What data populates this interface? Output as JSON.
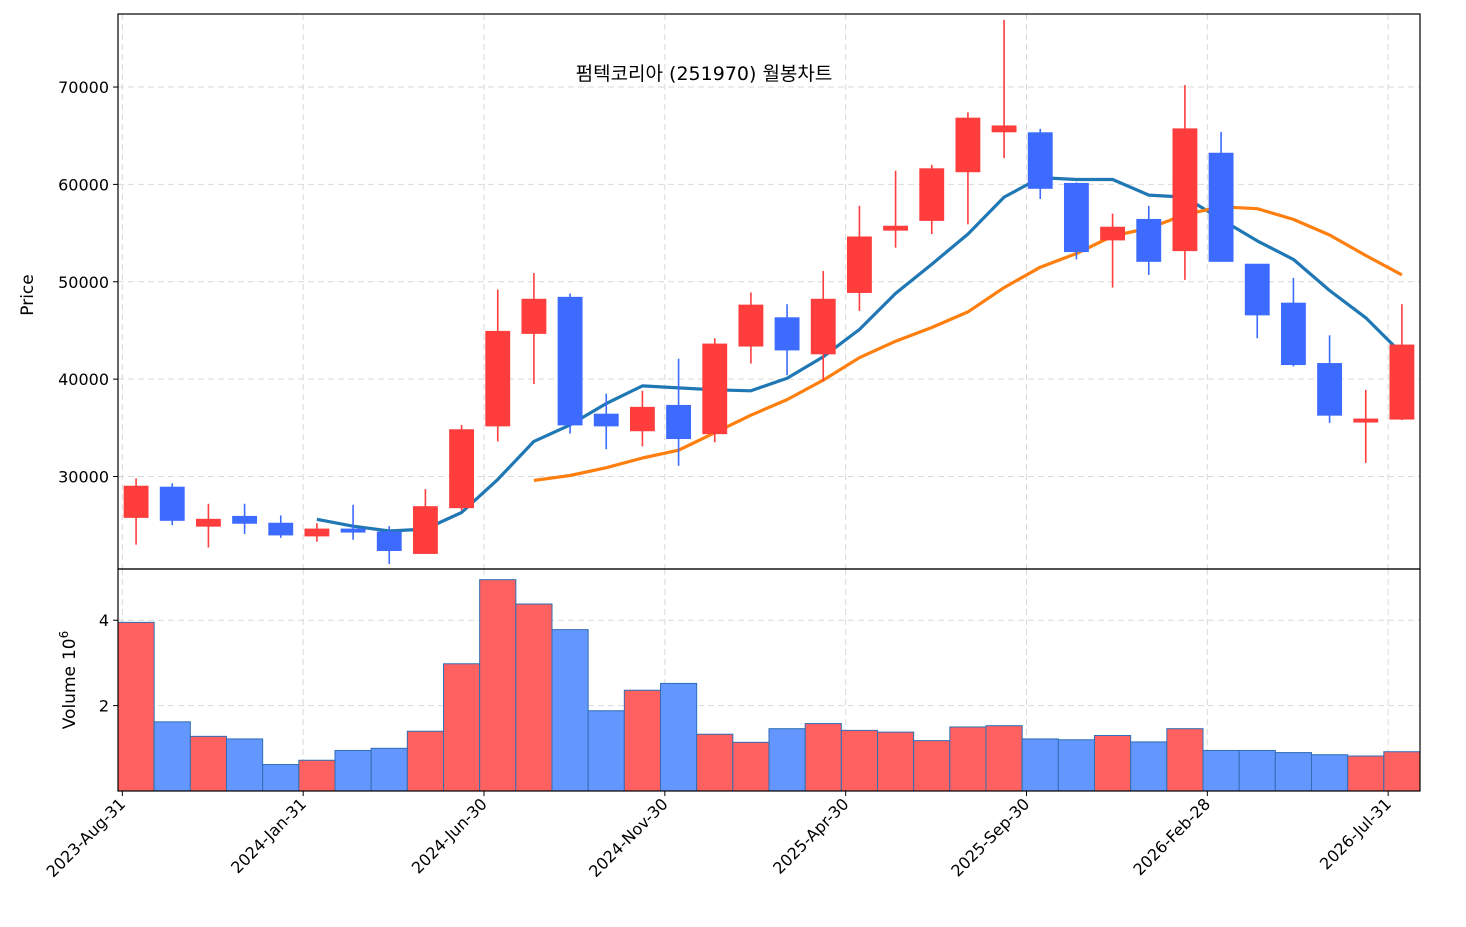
{
  "chart_data": {
    "type": "candlestick",
    "title": "펌텍코리아 (251970) 월봉차트",
    "price_ylabel": "Price",
    "volume_ylabel": "Volume",
    "volume_multiplier_label": "10",
    "volume_multiplier_exp": "6",
    "price_ylim": [
      20500,
      77500
    ],
    "volume_ylim": [
      0,
      5.2
    ],
    "price_yticks": [
      {
        "value": 30000,
        "label": "30000"
      },
      {
        "value": 40000,
        "label": "40000"
      },
      {
        "value": 50000,
        "label": "50000"
      },
      {
        "value": 60000,
        "label": "60000"
      },
      {
        "value": 70000,
        "label": "70000"
      }
    ],
    "volume_yticks": [
      {
        "value": 2,
        "label": "2"
      },
      {
        "value": 4,
        "label": "4"
      }
    ],
    "xticks": [
      {
        "index": 0,
        "label": "2023-Aug-31"
      },
      {
        "index": 5,
        "label": "2024-Jan-31"
      },
      {
        "index": 10,
        "label": "2024-Jun-30"
      },
      {
        "index": 15,
        "label": "2024-Nov-30"
      },
      {
        "index": 20,
        "label": "2025-Apr-30"
      },
      {
        "index": 25,
        "label": "2025-Sep-30"
      },
      {
        "index": 30,
        "label": "2026-Feb-28"
      },
      {
        "index": 35,
        "label": "2026-Jul-31"
      }
    ],
    "grid": true,
    "up_color": "#ff3d3d",
    "down_color": "#3d6bff",
    "volume_up_color": "#ff6060",
    "volume_down_color": "#6496ff",
    "ma_series": [
      {
        "color": "#1f77b4",
        "values": [
          null,
          null,
          null,
          null,
          null,
          25600,
          24900,
          24400,
          24600,
          26300,
          29700,
          33600,
          35300,
          37500,
          39300,
          39100,
          38900,
          38800,
          40100,
          42300,
          45100,
          48800,
          51800,
          54900,
          58700,
          60700,
          60500,
          60500,
          58900,
          58700,
          56400,
          54200,
          52300,
          49100,
          46300,
          42600
        ]
      },
      {
        "color": "#ff7f0e",
        "values": [
          null,
          null,
          null,
          null,
          null,
          null,
          null,
          null,
          null,
          null,
          null,
          29600,
          30100,
          30900,
          31900,
          32700,
          34500,
          36300,
          37900,
          39900,
          42200,
          43900,
          45300,
          46900,
          49400,
          51500,
          52900,
          54700,
          55500,
          56900,
          57700,
          57500,
          56400,
          54800,
          52700,
          50700
        ]
      }
    ],
    "candles": [
      {
        "date": "2023-08-31",
        "open": 25800,
        "high": 29800,
        "low": 23000,
        "close": 29000,
        "volume": 3.95
      },
      {
        "date": "2023-09-30",
        "open": 28900,
        "high": 29300,
        "low": 25000,
        "close": 25500,
        "volume": 1.62
      },
      {
        "date": "2023-10-31",
        "open": 24900,
        "high": 27200,
        "low": 22700,
        "close": 25600,
        "volume": 1.28
      },
      {
        "date": "2023-11-30",
        "open": 25900,
        "high": 27200,
        "low": 24100,
        "close": 25200,
        "volume": 1.22
      },
      {
        "date": "2023-12-31",
        "open": 25200,
        "high": 26000,
        "low": 23700,
        "close": 24000,
        "volume": 0.62
      },
      {
        "date": "2024-01-31",
        "open": 23900,
        "high": 25200,
        "low": 23300,
        "close": 24600,
        "volume": 0.72
      },
      {
        "date": "2024-02-29",
        "open": 24600,
        "high": 27100,
        "low": 23500,
        "close": 24300,
        "volume": 0.95
      },
      {
        "date": "2024-03-31",
        "open": 24300,
        "high": 24900,
        "low": 21000,
        "close": 22400,
        "volume": 1.0
      },
      {
        "date": "2024-04-30",
        "open": 22100,
        "high": 28700,
        "low": 22100,
        "close": 26900,
        "volume": 1.4
      },
      {
        "date": "2024-05-31",
        "open": 26800,
        "high": 35300,
        "low": 26500,
        "close": 34800,
        "volume": 2.98
      },
      {
        "date": "2024-06-30",
        "open": 35200,
        "high": 49200,
        "low": 33600,
        "close": 44900,
        "volume": 4.95
      },
      {
        "date": "2024-07-31",
        "open": 44700,
        "high": 50900,
        "low": 39500,
        "close": 48200,
        "volume": 4.38
      },
      {
        "date": "2024-08-31",
        "open": 48400,
        "high": 48800,
        "low": 34400,
        "close": 35300,
        "volume": 3.78
      },
      {
        "date": "2024-09-30",
        "open": 36400,
        "high": 38500,
        "low": 32800,
        "close": 35200,
        "volume": 1.88
      },
      {
        "date": "2024-10-31",
        "open": 34700,
        "high": 38800,
        "low": 33100,
        "close": 37100,
        "volume": 2.36
      },
      {
        "date": "2024-11-30",
        "open": 37300,
        "high": 42100,
        "low": 31100,
        "close": 33900,
        "volume": 2.52
      },
      {
        "date": "2024-12-31",
        "open": 34400,
        "high": 44200,
        "low": 33500,
        "close": 43600,
        "volume": 1.33
      },
      {
        "date": "2025-01-31",
        "open": 43400,
        "high": 48900,
        "low": 41600,
        "close": 47600,
        "volume": 1.14
      },
      {
        "date": "2025-02-28",
        "open": 46300,
        "high": 47700,
        "low": 40400,
        "close": 43000,
        "volume": 1.46
      },
      {
        "date": "2025-03-31",
        "open": 42600,
        "high": 51100,
        "low": 39800,
        "close": 48200,
        "volume": 1.58
      },
      {
        "date": "2025-04-30",
        "open": 48900,
        "high": 57800,
        "low": 47000,
        "close": 54600,
        "volume": 1.42
      },
      {
        "date": "2025-05-31",
        "open": 55300,
        "high": 61400,
        "low": 53500,
        "close": 55700,
        "volume": 1.38
      },
      {
        "date": "2025-06-30",
        "open": 56300,
        "high": 62000,
        "low": 54900,
        "close": 61600,
        "volume": 1.18
      },
      {
        "date": "2025-07-31",
        "open": 61300,
        "high": 67400,
        "low": 55900,
        "close": 66800,
        "volume": 1.5
      },
      {
        "date": "2025-08-31",
        "open": 65400,
        "high": 76900,
        "low": 62700,
        "close": 66000,
        "volume": 1.53
      },
      {
        "date": "2025-09-30",
        "open": 65300,
        "high": 65700,
        "low": 58500,
        "close": 59600,
        "volume": 1.22
      },
      {
        "date": "2025-10-31",
        "open": 60100,
        "high": 60200,
        "low": 52300,
        "close": 53100,
        "volume": 1.2
      },
      {
        "date": "2025-11-30",
        "open": 54300,
        "high": 57000,
        "low": 49400,
        "close": 55600,
        "volume": 1.3
      },
      {
        "date": "2025-12-31",
        "open": 56400,
        "high": 57800,
        "low": 50700,
        "close": 52100,
        "volume": 1.15
      },
      {
        "date": "2026-01-31",
        "open": 53200,
        "high": 70200,
        "low": 50200,
        "close": 65700,
        "volume": 1.46
      },
      {
        "date": "2026-02-28",
        "open": 63200,
        "high": 65400,
        "low": 52100,
        "close": 52100,
        "volume": 0.95
      },
      {
        "date": "2026-03-31",
        "open": 51800,
        "high": 51800,
        "low": 44200,
        "close": 46600,
        "volume": 0.95
      },
      {
        "date": "2026-04-30",
        "open": 47800,
        "high": 50400,
        "low": 41300,
        "close": 41500,
        "volume": 0.9
      },
      {
        "date": "2026-05-31",
        "open": 41600,
        "high": 44500,
        "low": 35500,
        "close": 36300,
        "volume": 0.85
      },
      {
        "date": "2026-06-30",
        "open": 35700,
        "high": 38900,
        "low": 31400,
        "close": 35900,
        "volume": 0.82
      },
      {
        "date": "2026-07-31",
        "open": 35900,
        "high": 47700,
        "low": 35800,
        "close": 43500,
        "volume": 0.92
      }
    ]
  }
}
